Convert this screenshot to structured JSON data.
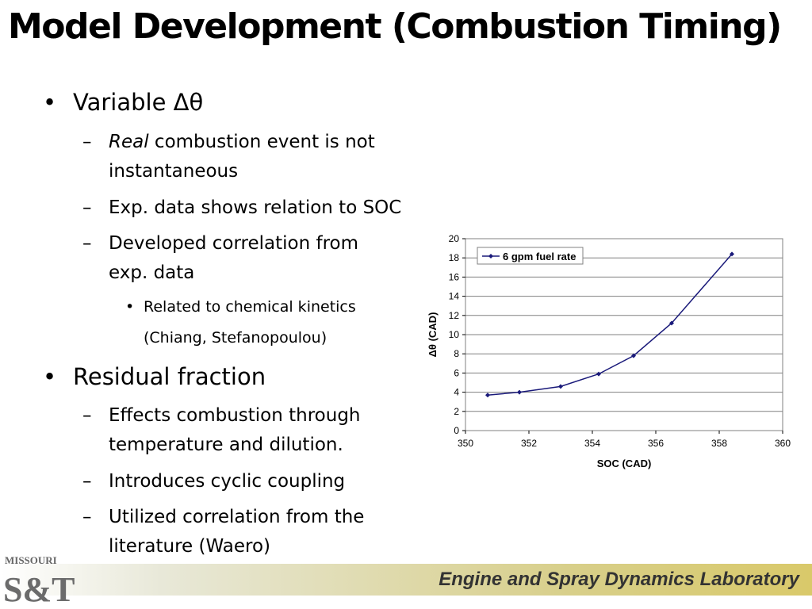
{
  "title": "Model Development (Combustion Timing)",
  "bullets": {
    "b1": "Variable Δθ",
    "b1_1_em": "Real",
    "b1_1_rest": " combustion event is not",
    "b1_1_line2": "instantaneous",
    "b1_2": "Exp. data shows relation to SOC",
    "b1_3_line1": "Developed correlation from",
    "b1_3_line2": "exp. data",
    "b1_3_1_line1": "Related to chemical kinetics",
    "b1_3_1_line2": "(Chiang, Stefanopoulou)",
    "b2": "Residual fraction",
    "b2_1_line1": "Effects combustion through",
    "b2_1_line2": "temperature and dilution.",
    "b2_2": "Introduces cyclic coupling",
    "b2_3_line1": "Utilized correlation from the",
    "b2_3_line2": "literature (Waero)"
  },
  "footer": {
    "lab_name": "Engine and Spray Dynamics Laboratory",
    "logo_top": "MISSOURI",
    "logo_main": "S&T"
  },
  "colors": {
    "series": "#1a1a7a",
    "grid": "#808080"
  },
  "chart_data": {
    "type": "line",
    "title": "",
    "xlabel": "SOC (CAD)",
    "ylabel": "Δθ (CAD)",
    "xlim": [
      350,
      360
    ],
    "ylim": [
      0,
      20
    ],
    "xticks": [
      350,
      352,
      354,
      356,
      358,
      360
    ],
    "yticks": [
      0,
      2,
      4,
      6,
      8,
      10,
      12,
      14,
      16,
      18,
      20
    ],
    "grid": true,
    "legend_position": "top-left",
    "series": [
      {
        "name": "6 gpm fuel rate",
        "x": [
          350.7,
          351.7,
          353.0,
          354.2,
          355.3,
          356.5,
          358.4
        ],
        "y": [
          3.7,
          4.0,
          4.6,
          5.9,
          7.8,
          11.2,
          18.4
        ]
      }
    ]
  }
}
